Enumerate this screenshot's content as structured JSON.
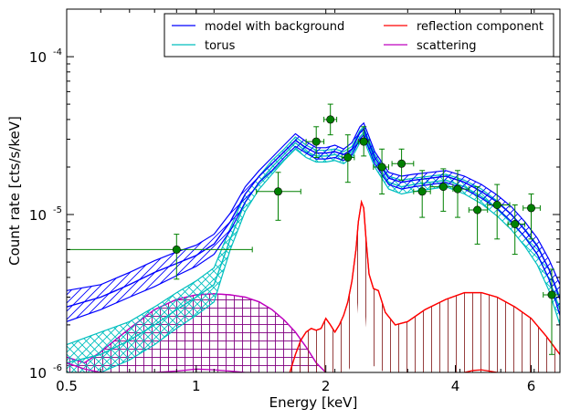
{
  "chart_data": {
    "type": "line",
    "xlabel": "Energy [keV]",
    "ylabel": "Count rate [cts/s/keV]",
    "xscale": "log",
    "yscale": "log",
    "xlim": [
      0.5,
      7.0
    ],
    "ylim": [
      1e-06,
      0.0002
    ],
    "grid": false,
    "legend_position": "top-right",
    "x_ticks": [
      {
        "value": 0.5,
        "label": "0.5"
      },
      {
        "value": 1,
        "label": "1"
      },
      {
        "value": 2,
        "label": "2"
      },
      {
        "value": 4,
        "label": "4"
      },
      {
        "value": 6,
        "label": "6"
      }
    ],
    "y_ticks": [
      {
        "value": 1e-06,
        "base": "10",
        "exp": "-6"
      },
      {
        "value": 1e-05,
        "base": "10",
        "exp": "-5"
      },
      {
        "value": 0.0001,
        "base": "10",
        "exp": "-4"
      }
    ],
    "legend": [
      {
        "label": "model with background",
        "color": "#0000ff"
      },
      {
        "label": "torus",
        "color": "#00bfbf"
      },
      {
        "label": "reflection component",
        "color": "#ff0000"
      },
      {
        "label": "scattering",
        "color": "#bf00bf"
      }
    ],
    "series": [
      {
        "name": "model with background",
        "color": "#0000ff",
        "band": true,
        "x": [
          0.5,
          0.6,
          0.7,
          0.8,
          0.9,
          1.0,
          1.1,
          1.2,
          1.3,
          1.4,
          1.5,
          1.6,
          1.7,
          1.8,
          1.9,
          2.0,
          2.1,
          2.2,
          2.3,
          2.4,
          2.45,
          2.5,
          2.6,
          2.8,
          3.0,
          3.2,
          3.5,
          3.8,
          4.2,
          4.6,
          5.0,
          5.4,
          5.8,
          6.2,
          6.6,
          7.0
        ],
        "y": [
          2.6e-06,
          3e-06,
          3.6e-06,
          4.3e-06,
          4.9e-06,
          5.5e-06,
          6.5e-06,
          9e-06,
          1.35e-05,
          1.75e-05,
          2.1e-05,
          2.5e-05,
          2.95e-05,
          2.65e-05,
          2.45e-05,
          2.45e-05,
          2.5e-05,
          2.4e-05,
          2.6e-05,
          3.3e-05,
          3.5e-05,
          3e-05,
          2.3e-05,
          1.7e-05,
          1.6e-05,
          1.65e-05,
          1.7e-05,
          1.75e-05,
          1.6e-05,
          1.4e-05,
          1.2e-05,
          1e-05,
          8e-06,
          6.3e-06,
          4.5e-06,
          2.9e-06
        ],
        "lower": [
          2.1e-06,
          2.5e-06,
          3e-06,
          3.5e-06,
          4.1e-06,
          4.7e-06,
          5.6e-06,
          7.9e-06,
          1.2e-05,
          1.6e-05,
          1.9e-05,
          2.3e-05,
          2.7e-05,
          2.45e-05,
          2.25e-05,
          2.25e-05,
          2.3e-05,
          2.2e-05,
          2.4e-05,
          3e-05,
          3.2e-05,
          2.75e-05,
          2.1e-05,
          1.55e-05,
          1.45e-05,
          1.5e-05,
          1.55e-05,
          1.6e-05,
          1.45e-05,
          1.27e-05,
          1.09e-05,
          9e-06,
          7.2e-06,
          5.6e-06,
          3.9e-06,
          2.3e-06
        ],
        "upper": [
          3.3e-06,
          3.6e-06,
          4.3e-06,
          5.1e-06,
          5.8e-06,
          6.4e-06,
          7.5e-06,
          1.02e-05,
          1.5e-05,
          1.9e-05,
          2.3e-05,
          2.75e-05,
          3.25e-05,
          2.9e-05,
          2.65e-05,
          2.65e-05,
          2.75e-05,
          2.6e-05,
          2.85e-05,
          3.6e-05,
          3.8e-05,
          3.3e-05,
          2.5e-05,
          1.85e-05,
          1.75e-05,
          1.8e-05,
          1.85e-05,
          1.9e-05,
          1.75e-05,
          1.55e-05,
          1.33e-05,
          1.12e-05,
          9e-06,
          7.1e-06,
          5.2e-06,
          3.6e-06
        ]
      },
      {
        "name": "torus",
        "color": "#00bfbf",
        "band": true,
        "x": [
          0.5,
          0.6,
          0.7,
          0.8,
          0.9,
          1.0,
          1.1,
          1.2,
          1.3,
          1.4,
          1.5,
          1.6,
          1.7,
          1.8,
          1.9,
          2.0,
          2.1,
          2.2,
          2.3,
          2.4,
          2.45,
          2.5,
          2.6,
          2.8,
          3.0,
          3.2,
          3.5,
          3.8,
          4.2,
          4.6,
          5.0,
          5.4,
          5.8,
          6.2,
          6.6,
          7.0
        ],
        "y": [
          1.15e-06,
          1.3e-06,
          1.6e-06,
          2e-06,
          2.5e-06,
          3e-06,
          3.6e-06,
          7e-06,
          1.2e-05,
          1.6e-05,
          2e-05,
          2.4e-05,
          2.85e-05,
          2.5e-05,
          2.35e-05,
          2.35e-05,
          2.4e-05,
          2.3e-05,
          2.5e-05,
          3.1e-05,
          3.3e-05,
          2.85e-05,
          2.2e-05,
          1.6e-05,
          1.5e-05,
          1.55e-05,
          1.6e-05,
          1.65e-05,
          1.5e-05,
          1.3e-05,
          1.1e-05,
          9e-06,
          7.2e-06,
          5.6e-06,
          3.9e-06,
          2.5e-06
        ],
        "lower": [
          1e-06,
          1e-06,
          1.2e-06,
          1.5e-06,
          1.9e-06,
          2.3e-06,
          2.8e-06,
          6e-06,
          1.05e-05,
          1.45e-05,
          1.8e-05,
          2.2e-05,
          2.6e-05,
          2.3e-05,
          2.15e-05,
          2.15e-05,
          2.2e-05,
          2.1e-05,
          2.3e-05,
          2.85e-05,
          3e-05,
          2.6e-05,
          2e-05,
          1.45e-05,
          1.35e-05,
          1.4e-05,
          1.45e-05,
          1.5e-05,
          1.35e-05,
          1.17e-05,
          9.8e-06,
          8e-06,
          6.3e-06,
          4.8e-06,
          3.3e-06,
          2e-06
        ],
        "upper": [
          1.5e-06,
          1.8e-06,
          2.1e-06,
          2.6e-06,
          3.2e-06,
          3.8e-06,
          4.6e-06,
          8.2e-06,
          1.35e-05,
          1.75e-05,
          2.2e-05,
          2.6e-05,
          3.1e-05,
          2.75e-05,
          2.55e-05,
          2.55e-05,
          2.6e-05,
          2.5e-05,
          2.7e-05,
          3.4e-05,
          3.6e-05,
          3.1e-05,
          2.4e-05,
          1.75e-05,
          1.65e-05,
          1.7e-05,
          1.75e-05,
          1.8e-05,
          1.65e-05,
          1.45e-05,
          1.22e-05,
          1e-05,
          8.1e-06,
          6.4e-06,
          4.5e-06,
          3e-06
        ]
      },
      {
        "name": "reflection component",
        "color": "#ff0000",
        "band": true,
        "x": [
          1.65,
          1.7,
          1.75,
          1.8,
          1.85,
          1.9,
          1.95,
          2.0,
          2.05,
          2.1,
          2.15,
          2.2,
          2.25,
          2.3,
          2.35,
          2.38,
          2.42,
          2.45,
          2.48,
          2.52,
          2.58,
          2.65,
          2.75,
          2.9,
          3.1,
          3.4,
          3.8,
          4.2,
          4.6,
          5.0,
          5.5,
          6.0,
          6.5,
          7.0
        ],
        "y": [
          1e-06,
          1.3e-06,
          1.6e-06,
          1.8e-06,
          1.9e-06,
          1.85e-06,
          1.9e-06,
          2.2e-06,
          2e-06,
          1.8e-06,
          2e-06,
          2.3e-06,
          2.8e-06,
          3.8e-06,
          6e-06,
          9e-06,
          1.2e-05,
          1.1e-05,
          7e-06,
          4.2e-06,
          3.4e-06,
          3.3e-06,
          2.4e-06,
          2e-06,
          2.1e-06,
          2.5e-06,
          2.9e-06,
          3.2e-06,
          3.2e-06,
          3e-06,
          2.6e-06,
          2.2e-06,
          1.7e-06,
          1.3e-06
        ],
        "lower": [
          1e-06,
          1e-06,
          1e-06,
          1e-06,
          1e-06,
          1e-06,
          1e-06,
          1e-06,
          1e-06,
          1e-06,
          1e-06,
          1e-06,
          1e-06,
          1.15e-06,
          1.9e-06,
          2.9e-06,
          3.6e-06,
          3.1e-06,
          2e-06,
          1.3e-06,
          1.1e-06,
          1.05e-06,
          1e-06,
          1e-06,
          1e-06,
          1e-06,
          1e-06,
          1e-06,
          1e-06,
          1e-06,
          1e-06,
          1e-06,
          1e-06,
          1e-06
        ],
        "upper": [
          1e-06,
          1.3e-06,
          1.6e-06,
          1.8e-06,
          1.9e-06,
          1.85e-06,
          1.9e-06,
          2.2e-06,
          2e-06,
          1.8e-06,
          2e-06,
          2.3e-06,
          2.8e-06,
          3.8e-06,
          6e-06,
          9e-06,
          1.2e-05,
          1.1e-05,
          7e-06,
          4.2e-06,
          3.4e-06,
          3.3e-06,
          2.4e-06,
          2e-06,
          2.1e-06,
          2.5e-06,
          2.9e-06,
          3.2e-06,
          3.2e-06,
          3e-06,
          2.6e-06,
          2.2e-06,
          1.7e-06,
          1.3e-06
        ]
      },
      {
        "name": "scattering",
        "color": "#bf00bf",
        "band": true,
        "x": [
          0.5,
          0.55,
          0.6,
          0.7,
          0.8,
          0.9,
          1.0,
          1.1,
          1.2,
          1.3,
          1.4,
          1.5,
          1.6,
          1.7,
          1.8,
          1.9,
          2.0
        ],
        "y": [
          1.25e-06,
          1.15e-06,
          1.35e-06,
          1.9e-06,
          2.5e-06,
          2.9e-06,
          3.1e-06,
          3.15e-06,
          3.1e-06,
          3e-06,
          2.8e-06,
          2.5e-06,
          2.15e-06,
          1.8e-06,
          1.45e-06,
          1.15e-06,
          1e-06
        ],
        "lower": [
          1e-06,
          1e-06,
          1e-06,
          1e-06,
          1e-06,
          1e-06,
          1e-06,
          1e-06,
          1e-06,
          1e-06,
          1e-06,
          1e-06,
          1e-06,
          1e-06,
          1e-06,
          1e-06,
          1e-06
        ],
        "upper": [
          1.25e-06,
          1.15e-06,
          1.35e-06,
          1.9e-06,
          2.5e-06,
          2.9e-06,
          3.1e-06,
          3.15e-06,
          3.1e-06,
          3e-06,
          2.8e-06,
          2.5e-06,
          2.15e-06,
          1.8e-06,
          1.45e-06,
          1.15e-06,
          1e-06
        ]
      }
    ],
    "extra_curves": [
      {
        "color": "#bf00bf",
        "x": [
          0.5,
          0.55,
          0.6,
          0.7,
          0.8,
          0.9,
          1.0,
          1.1,
          1.2,
          1.3,
          1.4
        ],
        "y": [
          1.15e-06,
          1.05e-06,
          1e-06,
          1e-06,
          1e-06,
          1.02e-06,
          1.05e-06,
          1.04e-06,
          1.02e-06,
          1e-06,
          1e-06
        ]
      },
      {
        "color": "#ff0000",
        "x": [
          4.2,
          4.4,
          4.6,
          4.8,
          5.0
        ],
        "y": [
          1e-06,
          1.03e-06,
          1.04e-06,
          1.02e-06,
          1e-06
        ]
      }
    ],
    "data_points": {
      "color": "#008000",
      "points": [
        {
          "x": 0.9,
          "y": 6e-06,
          "xerr": [
            0.4,
            1.35
          ],
          "yerr": [
            3.9e-06,
            7.5e-06
          ]
        },
        {
          "x": 1.55,
          "y": 1.4e-05,
          "xerr": [
            1.38,
            1.75
          ],
          "yerr": [
            9.2e-06,
            1.85e-05
          ]
        },
        {
          "x": 1.9,
          "y": 2.9e-05,
          "xerr": [
            1.8,
            1.98
          ],
          "yerr": [
            2.3e-05,
            3.6e-05
          ]
        },
        {
          "x": 2.05,
          "y": 4e-05,
          "xerr": [
            1.98,
            2.12
          ],
          "yerr": [
            3.2e-05,
            5e-05
          ]
        },
        {
          "x": 2.25,
          "y": 2.3e-05,
          "xerr": [
            2.18,
            2.33
          ],
          "yerr": [
            1.6e-05,
            3.2e-05
          ]
        },
        {
          "x": 2.45,
          "y": 2.9e-05,
          "xerr": [
            2.38,
            2.52
          ],
          "yerr": [
            2.35e-05,
            3.6e-05
          ]
        },
        {
          "x": 2.7,
          "y": 2e-05,
          "xerr": [
            2.58,
            2.8
          ],
          "yerr": [
            1.35e-05,
            2.6e-05
          ]
        },
        {
          "x": 3.0,
          "y": 2.1e-05,
          "xerr": [
            2.85,
            3.2
          ],
          "yerr": [
            1.65e-05,
            2.6e-05
          ]
        },
        {
          "x": 3.35,
          "y": 1.4e-05,
          "xerr": [
            3.2,
            3.5
          ],
          "yerr": [
            9.6e-06,
            1.9e-05
          ]
        },
        {
          "x": 3.75,
          "y": 1.5e-05,
          "xerr": [
            3.5,
            3.95
          ],
          "yerr": [
            1.05e-05,
            1.95e-05
          ]
        },
        {
          "x": 4.05,
          "y": 1.45e-05,
          "xerr": [
            3.95,
            4.3
          ],
          "yerr": [
            9.6e-06,
            1.9e-05
          ]
        },
        {
          "x": 4.5,
          "y": 1.07e-05,
          "xerr": [
            4.3,
            4.75
          ],
          "yerr": [
            6.5e-06,
            1.5e-05
          ]
        },
        {
          "x": 5.0,
          "y": 1.15e-05,
          "xerr": [
            4.75,
            5.35
          ],
          "yerr": [
            7e-06,
            1.55e-05
          ]
        },
        {
          "x": 5.5,
          "y": 8.7e-06,
          "xerr": [
            5.3,
            5.8
          ],
          "yerr": [
            5.6e-06,
            1.15e-05
          ]
        },
        {
          "x": 6.0,
          "y": 1.1e-05,
          "xerr": [
            5.75,
            6.3
          ],
          "yerr": [
            7e-06,
            1.35e-05
          ]
        },
        {
          "x": 6.7,
          "y": 3.1e-06,
          "xerr": [
            6.4,
            7.0
          ],
          "yerr": [
            1.3e-06,
            4.5e-06
          ]
        }
      ]
    }
  }
}
